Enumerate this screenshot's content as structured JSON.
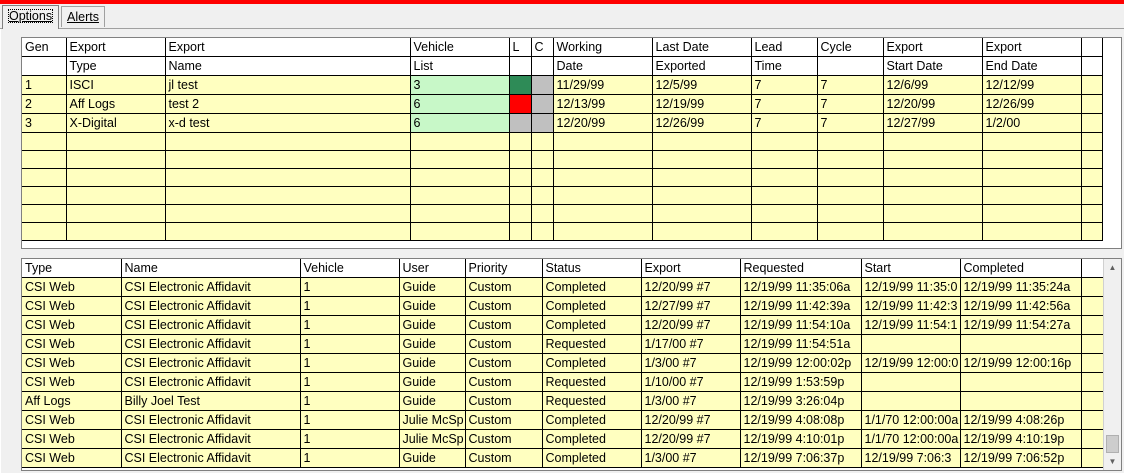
{
  "tabs": [
    {
      "label": "Options",
      "active": true
    },
    {
      "label": "Alerts",
      "active": false
    }
  ],
  "colors": {
    "accent": "#ff0000",
    "row": "#ffffc0",
    "vehicle": "#c8f8c8",
    "flag_green": "#2e8b57",
    "flag_red": "#ff0000",
    "flag_gray": "#c0c0c0"
  },
  "gen_grid": {
    "header1": [
      "Gen",
      "Export",
      "Export",
      "Vehicle",
      "L",
      "C",
      "Working",
      "Last Date",
      "Lead",
      "Cycle",
      "Export",
      "Export"
    ],
    "header2": [
      "",
      "Type",
      "Name",
      "List",
      "",
      "",
      "Date",
      "Exported",
      "Time",
      "",
      "Start Date",
      "End Date"
    ],
    "rows": [
      {
        "gen": "1",
        "type": "ISCI",
        "name": "jl test",
        "list": "3",
        "l_color": "#2e8b57",
        "working": "11/29/99",
        "last": "12/5/99",
        "lead": "7",
        "cycle": "7",
        "start": "12/6/99",
        "end": "12/12/99"
      },
      {
        "gen": "2",
        "type": "Aff Logs",
        "name": "test 2",
        "list": "6",
        "l_color": "#ff0000",
        "working": "12/13/99",
        "last": "12/19/99",
        "lead": "7",
        "cycle": "7",
        "start": "12/20/99",
        "end": "12/26/99"
      },
      {
        "gen": "3",
        "type": "X-Digital",
        "name": "x-d test",
        "list": "6",
        "l_color": "#c0c0c0",
        "working": "12/20/99",
        "last": "12/26/99",
        "lead": "7",
        "cycle": "7",
        "start": "12/27/99",
        "end": "1/2/00"
      }
    ]
  },
  "req_grid": {
    "headers": [
      "Type",
      "Name",
      "Vehicle",
      "User",
      "Priority",
      "Status",
      "Export",
      "Requested",
      "Start",
      "Completed"
    ],
    "rows": [
      [
        "CSI Web",
        "CSI Electronic Affidavit",
        "1",
        "Guide",
        "Custom",
        "Completed",
        "12/20/99 #7",
        "12/19/99 11:35:06a",
        "12/19/99 11:35:0",
        "12/19/99 11:35:24a"
      ],
      [
        "CSI Web",
        "CSI Electronic Affidavit",
        "1",
        "Guide",
        "Custom",
        "Completed",
        "12/27/99 #7",
        "12/19/99 11:42:39a",
        "12/19/99 11:42:3",
        "12/19/99 11:42:56a"
      ],
      [
        "CSI Web",
        "CSI Electronic Affidavit",
        "1",
        "Guide",
        "Custom",
        "Completed",
        "12/20/99 #7",
        "12/19/99 11:54:10a",
        "12/19/99 11:54:1",
        "12/19/99 11:54:27a"
      ],
      [
        "CSI Web",
        "CSI Electronic Affidavit",
        "1",
        "Guide",
        "Custom",
        "Requested",
        "1/17/00 #7",
        "12/19/99 11:54:51a",
        "",
        ""
      ],
      [
        "CSI Web",
        "CSI Electronic Affidavit",
        "1",
        "Guide",
        "Custom",
        "Completed",
        "1/3/00 #7",
        "12/19/99 12:00:02p",
        "12/19/99 12:00:0",
        "12/19/99 12:00:16p"
      ],
      [
        "CSI Web",
        "CSI Electronic Affidavit",
        "1",
        "Guide",
        "Custom",
        "Requested",
        "1/10/00 #7",
        "12/19/99 1:53:59p",
        "",
        ""
      ],
      [
        "Aff Logs",
        "Billy Joel Test",
        "1",
        "Guide",
        "Custom",
        "Requested",
        "1/3/00 #7",
        "12/19/99 3:26:04p",
        "",
        ""
      ],
      [
        "CSI Web",
        "CSI Electronic Affidavit",
        "1",
        "Julie McSp",
        "Custom",
        "Completed",
        "12/20/99 #7",
        "12/19/99 4:08:08p",
        "1/1/70 12:00:00a",
        "12/19/99 4:08:26p"
      ],
      [
        "CSI Web",
        "CSI Electronic Affidavit",
        "1",
        "Julie McSp",
        "Custom",
        "Completed",
        "12/20/99 #7",
        "12/19/99 4:10:01p",
        "1/1/70 12:00:00a",
        "12/19/99 4:10:19p"
      ],
      [
        "CSI Web",
        "CSI Electronic Affidavit",
        "1",
        "Guide",
        "Custom",
        "Completed",
        "1/3/00 #7",
        "12/19/99 7:06:37p",
        "12/19/99 7:06:3",
        "12/19/99 7:06:52p"
      ]
    ]
  }
}
